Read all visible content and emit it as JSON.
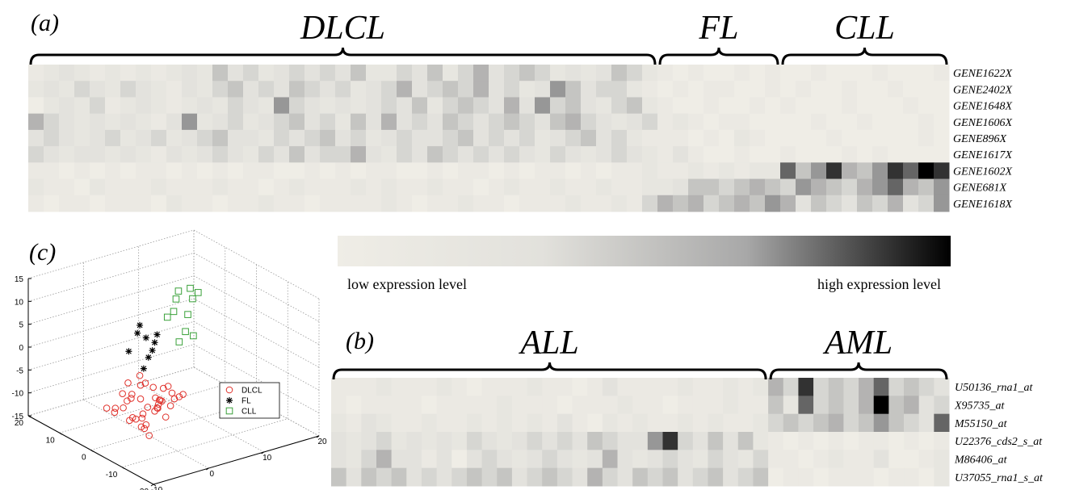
{
  "chart_data": [
    {
      "type": "heatmap",
      "panel": "(a)",
      "groups": [
        {
          "name": "DLCL",
          "count": 41
        },
        {
          "name": "FL",
          "count": 8
        },
        {
          "name": "CLL",
          "count": 11
        }
      ],
      "rows": [
        "GENE1622X",
        "GENE2402X",
        "GENE1648X",
        "GENE1606X",
        "GENE896X",
        "GENE1617X",
        "GENE1602X",
        "GENE681X",
        "GENE1618X"
      ],
      "clim": [
        0,
        10
      ],
      "values": [
        [
          1,
          2,
          3,
          2,
          1,
          2,
          1,
          2,
          1,
          2,
          3,
          2,
          5,
          3,
          4,
          2,
          3,
          4,
          3,
          4,
          3,
          5,
          2,
          2,
          4,
          3,
          5,
          2,
          4,
          6,
          3,
          4,
          5,
          4,
          2,
          3,
          2,
          3,
          5,
          4,
          2,
          1,
          0,
          1,
          0,
          0,
          1,
          0,
          1,
          0,
          0,
          1,
          0,
          0,
          0,
          1,
          0,
          0,
          0,
          1
        ],
        [
          2,
          3,
          2,
          4,
          3,
          2,
          4,
          3,
          2,
          1,
          3,
          2,
          4,
          5,
          3,
          4,
          3,
          5,
          4,
          3,
          4,
          2,
          3,
          4,
          6,
          3,
          4,
          5,
          4,
          6,
          3,
          4,
          2,
          3,
          7,
          5,
          3,
          4,
          4,
          2,
          1,
          0,
          1,
          0,
          1,
          1,
          0,
          0,
          1,
          0,
          1,
          0,
          0,
          1,
          0,
          0,
          1,
          0,
          0,
          0
        ],
        [
          0,
          2,
          3,
          2,
          4,
          1,
          2,
          3,
          2,
          1,
          2,
          3,
          2,
          4,
          3,
          2,
          7,
          4,
          3,
          2,
          3,
          2,
          3,
          4,
          3,
          5,
          2,
          4,
          5,
          4,
          3,
          6,
          3,
          7,
          4,
          5,
          3,
          2,
          4,
          5,
          2,
          1,
          0,
          0,
          1,
          0,
          0,
          1,
          0,
          1,
          0,
          0,
          0,
          1,
          0,
          0,
          0,
          1,
          0,
          0
        ],
        [
          6,
          4,
          3,
          2,
          3,
          2,
          3,
          2,
          1,
          3,
          7,
          2,
          3,
          4,
          2,
          3,
          4,
          5,
          3,
          4,
          2,
          5,
          3,
          6,
          3,
          4,
          3,
          5,
          4,
          3,
          4,
          5,
          4,
          3,
          5,
          6,
          4,
          3,
          2,
          3,
          4,
          1,
          2,
          1,
          0,
          1,
          1,
          0,
          0,
          0,
          0,
          1,
          0,
          0,
          1,
          0,
          0,
          0,
          1,
          0
        ],
        [
          3,
          4,
          3,
          2,
          3,
          4,
          2,
          3,
          4,
          2,
          3,
          4,
          5,
          3,
          3,
          2,
          4,
          3,
          4,
          5,
          3,
          4,
          2,
          3,
          4,
          3,
          3,
          4,
          5,
          3,
          4,
          3,
          4,
          2,
          3,
          4,
          5,
          3,
          4,
          2,
          1,
          1,
          1,
          0,
          1,
          0,
          2,
          1,
          0,
          0,
          0,
          0,
          1,
          0,
          0,
          0,
          0,
          0,
          1,
          0
        ],
        [
          4,
          3,
          2,
          3,
          3,
          2,
          3,
          2,
          1,
          3,
          2,
          3,
          4,
          3,
          2,
          4,
          3,
          5,
          3,
          4,
          4,
          6,
          3,
          2,
          4,
          3,
          5,
          4,
          3,
          4,
          3,
          4,
          3,
          2,
          4,
          3,
          2,
          3,
          4,
          3,
          2,
          1,
          3,
          1,
          0,
          0,
          1,
          0,
          0,
          1,
          0,
          0,
          0,
          1,
          0,
          1,
          0,
          0,
          0,
          0
        ],
        [
          1,
          1,
          0,
          1,
          0,
          1,
          0,
          1,
          1,
          0,
          1,
          0,
          1,
          0,
          1,
          1,
          0,
          0,
          1,
          0,
          1,
          0,
          1,
          1,
          0,
          0,
          1,
          0,
          1,
          1,
          0,
          1,
          0,
          1,
          1,
          0,
          1,
          0,
          1,
          1,
          2,
          1,
          1,
          2,
          1,
          2,
          1,
          2,
          2,
          8,
          5,
          7,
          9,
          6,
          5,
          7,
          9,
          8,
          10,
          9
        ],
        [
          2,
          1,
          1,
          0,
          2,
          1,
          1,
          1,
          2,
          1,
          1,
          1,
          2,
          1,
          1,
          0,
          1,
          2,
          1,
          1,
          1,
          2,
          1,
          2,
          1,
          1,
          2,
          1,
          1,
          0,
          1,
          2,
          1,
          1,
          2,
          1,
          1,
          2,
          1,
          1,
          2,
          2,
          3,
          5,
          5,
          4,
          5,
          6,
          5,
          4,
          7,
          6,
          5,
          4,
          6,
          7,
          8,
          6,
          5,
          7
        ],
        [
          1,
          0,
          1,
          1,
          0,
          1,
          1,
          1,
          0,
          2,
          1,
          1,
          0,
          1,
          1,
          2,
          1,
          1,
          0,
          1,
          1,
          1,
          1,
          2,
          1,
          0,
          1,
          1,
          2,
          1,
          1,
          0,
          1,
          1,
          1,
          2,
          1,
          1,
          2,
          1,
          4,
          6,
          5,
          6,
          4,
          5,
          6,
          5,
          7,
          6,
          3,
          5,
          4,
          3,
          5,
          4,
          6,
          3,
          4,
          7
        ]
      ]
    },
    {
      "type": "heatmap",
      "panel": "(b)",
      "groups": [
        {
          "name": "ALL",
          "count": 29
        },
        {
          "name": "AML",
          "count": 12
        }
      ],
      "rows": [
        "U50136_rna1_at",
        "X95735_at",
        "M55150_at",
        "U22376_cds2_s_at",
        "M86406_at",
        "U37055_rna1_s_at"
      ],
      "clim": [
        0,
        10
      ],
      "values": [
        [
          1,
          1,
          1,
          2,
          1,
          1,
          1,
          2,
          1,
          0,
          1,
          1,
          1,
          2,
          1,
          1,
          0,
          1,
          3,
          1,
          1,
          1,
          1,
          2,
          1,
          1,
          2,
          1,
          2,
          6,
          4,
          9,
          4,
          5,
          4,
          6,
          8,
          4,
          5,
          4,
          3
        ],
        [
          1,
          0,
          1,
          1,
          1,
          1,
          0,
          1,
          1,
          1,
          1,
          2,
          1,
          1,
          1,
          0,
          1,
          1,
          1,
          2,
          1,
          1,
          0,
          1,
          1,
          1,
          2,
          1,
          1,
          5,
          2,
          8,
          4,
          5,
          4,
          6,
          10,
          5,
          6,
          3,
          4
        ],
        [
          2,
          1,
          3,
          2,
          1,
          1,
          2,
          1,
          1,
          2,
          1,
          2,
          1,
          2,
          1,
          3,
          1,
          0,
          2,
          1,
          2,
          1,
          1,
          2,
          1,
          2,
          1,
          1,
          2,
          4,
          5,
          4,
          5,
          6,
          4,
          5,
          7,
          5,
          4,
          3,
          8
        ],
        [
          3,
          2,
          3,
          4,
          2,
          3,
          2,
          3,
          2,
          4,
          3,
          2,
          3,
          4,
          3,
          4,
          3,
          5,
          4,
          3,
          3,
          7,
          9,
          4,
          3,
          5,
          3,
          5,
          2,
          1,
          0,
          1,
          0,
          1,
          0,
          1,
          1,
          0,
          1,
          0,
          1
        ],
        [
          3,
          2,
          4,
          6,
          3,
          3,
          1,
          3,
          0,
          3,
          4,
          3,
          2,
          3,
          4,
          3,
          2,
          3,
          6,
          3,
          2,
          3,
          4,
          3,
          2,
          4,
          3,
          2,
          4,
          1,
          1,
          0,
          1,
          2,
          1,
          1,
          3,
          0,
          0,
          1,
          2
        ],
        [
          5,
          3,
          5,
          4,
          5,
          3,
          4,
          3,
          4,
          5,
          4,
          5,
          3,
          4,
          5,
          4,
          3,
          6,
          4,
          3,
          5,
          4,
          5,
          3,
          4,
          5,
          3,
          4,
          5,
          0,
          1,
          1,
          0,
          1,
          1,
          1,
          0,
          1,
          1,
          0,
          2
        ]
      ]
    },
    {
      "type": "scatter3d",
      "panel": "(c)",
      "xlim": [
        -10,
        20
      ],
      "xticks": [
        -10,
        0,
        10,
        20
      ],
      "ylim": [
        -20,
        20
      ],
      "yticks": [
        -20,
        -10,
        0,
        10,
        20
      ],
      "zlim": [
        -15,
        15
      ],
      "zticks": [
        -15,
        -10,
        -5,
        0,
        5,
        10,
        15
      ],
      "grid": true,
      "legend": "right",
      "series": [
        {
          "name": "DLCL",
          "color": "#e0302a",
          "marker": "circle",
          "x": [
            -3,
            -1,
            0,
            2,
            4,
            -4,
            -2,
            1,
            3,
            5,
            -5,
            -3,
            0,
            2,
            -1,
            1,
            3,
            -2,
            0,
            4,
            -4,
            -1,
            2,
            5,
            -3,
            0,
            3,
            1,
            -2,
            6,
            -6,
            -2,
            2,
            0,
            -1,
            4,
            1,
            -3,
            3,
            0
          ],
          "y": [
            2,
            0,
            1,
            -1,
            0,
            3,
            -2,
            2,
            1,
            -3,
            1,
            -1,
            -3,
            3,
            0,
            -2,
            -1,
            4,
            2,
            2,
            -1,
            3,
            -2,
            1,
            -4,
            0,
            3,
            -1,
            1,
            0,
            2,
            -3,
            0,
            -4,
            4,
            -2,
            5,
            0,
            -3,
            -1
          ],
          "z": [
            -9,
            -7,
            -11,
            -8,
            -6,
            -10,
            -12,
            -5,
            -9,
            -7,
            -8,
            -10,
            -6,
            -11,
            -4,
            -9,
            -12,
            -7,
            -3,
            -10,
            -6,
            -8,
            -5,
            -11,
            -9,
            -13,
            -7,
            -10,
            -6,
            -9,
            -8,
            -12,
            -10,
            -7,
            -5,
            -8,
            -14,
            -11,
            -6,
            -15
          ]
        },
        {
          "name": "FL",
          "color": "#000000",
          "marker": "star",
          "x": [
            -1,
            0,
            1,
            -2,
            0,
            2,
            1,
            -1,
            0
          ],
          "y": [
            1,
            0,
            -1,
            2,
            -2,
            0,
            1,
            -1,
            2
          ],
          "z": [
            7,
            6,
            5,
            3,
            4,
            6,
            1,
            0,
            8
          ]
        },
        {
          "name": "CLL",
          "color": "#3aa13a",
          "marker": "square",
          "x": [
            5,
            6,
            7,
            8,
            5,
            6,
            9,
            7,
            8,
            6,
            10
          ],
          "y": [
            0,
            1,
            -1,
            0,
            2,
            -2,
            1,
            2,
            -1,
            0,
            1
          ],
          "z": [
            10,
            12,
            9,
            14,
            8,
            6,
            11,
            13,
            4,
            3,
            12
          ]
        }
      ]
    }
  ],
  "colorbar": {
    "colormap": [
      "#efede6",
      "#e2e1dc",
      "#a8a8a8",
      "#000000"
    ],
    "low_label": "low expression level",
    "high_label": "high expression level"
  }
}
